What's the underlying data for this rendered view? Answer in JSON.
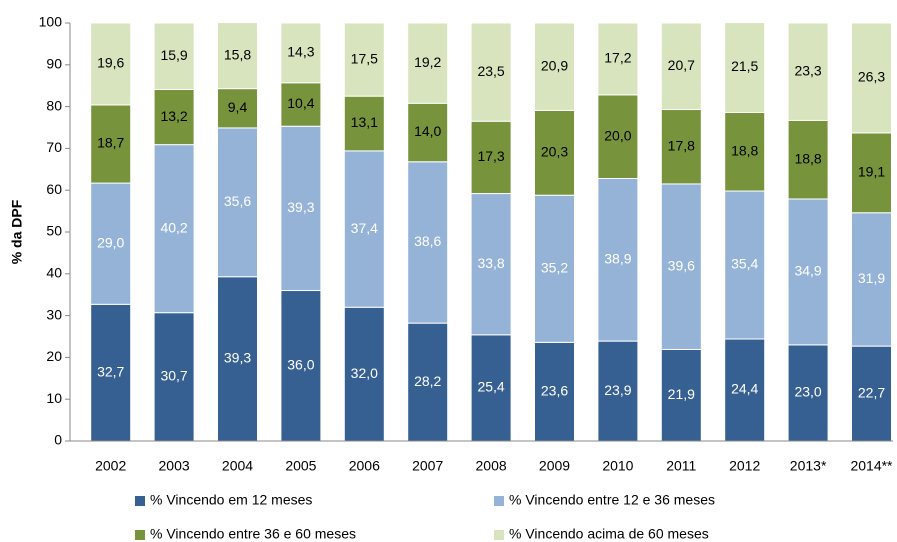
{
  "chart_data": {
    "type": "stacked_bar",
    "y_label": "% da DPF",
    "categories": [
      "2002",
      "2003",
      "2004",
      "2005",
      "2006",
      "2007",
      "2008",
      "2009",
      "2010",
      "2011",
      "2012",
      "2013*",
      "2014**"
    ],
    "series": [
      {
        "name": "% Vincendo em 12 meses",
        "color": "#376092",
        "label_color": "#ffffff",
        "values": [
          32.7,
          30.7,
          39.3,
          36.0,
          32.0,
          28.2,
          25.4,
          23.6,
          23.9,
          21.9,
          24.4,
          23.0,
          22.7
        ],
        "value_labels": [
          "32,7",
          "30,7",
          "39,3",
          "36,0",
          "32,0",
          "28,2",
          "25,4",
          "23,6",
          "23,9",
          "21,9",
          "24,4",
          "23,0",
          "22,7"
        ]
      },
      {
        "name": "% Vincendo entre 12 e 36 meses",
        "color": "#95b3d7",
        "label_color": "#ffffff",
        "values": [
          29.0,
          40.2,
          35.6,
          39.3,
          37.4,
          38.6,
          33.8,
          35.2,
          38.9,
          39.6,
          35.4,
          34.9,
          31.9
        ],
        "value_labels": [
          "29,0",
          "40,2",
          "35,6",
          "39,3",
          "37,4",
          "38,6",
          "33,8",
          "35,2",
          "38,9",
          "39,6",
          "35,4",
          "34,9",
          "31,9"
        ]
      },
      {
        "name": "% Vincendo entre 36 e 60 meses",
        "color": "#77933c",
        "label_color": "#000000",
        "values": [
          18.7,
          13.2,
          9.4,
          10.4,
          13.1,
          14.0,
          17.3,
          20.3,
          20.0,
          17.8,
          18.8,
          18.8,
          19.1
        ],
        "value_labels": [
          "18,7",
          "13,2",
          "9,4",
          "10,4",
          "13,1",
          "14,0",
          "17,3",
          "20,3",
          "20,0",
          "17,8",
          "18,8",
          "18,8",
          "19,1"
        ]
      },
      {
        "name": "% Vincendo acima de 60 meses",
        "color": "#d7e4bd",
        "label_color": "#000000",
        "values": [
          19.6,
          15.9,
          15.8,
          14.3,
          17.5,
          19.2,
          23.5,
          20.9,
          17.2,
          20.7,
          21.5,
          23.3,
          26.3
        ],
        "value_labels": [
          "19,6",
          "15,9",
          "15,8",
          "14,3",
          "17,5",
          "19,2",
          "23,5",
          "20,9",
          "17,2",
          "20,7",
          "21,5",
          "23,3",
          "26,3"
        ]
      }
    ],
    "ylim": [
      0,
      100
    ],
    "yticks": [
      0,
      10,
      20,
      30,
      40,
      50,
      60,
      70,
      80,
      90,
      100
    ],
    "grid": false
  }
}
